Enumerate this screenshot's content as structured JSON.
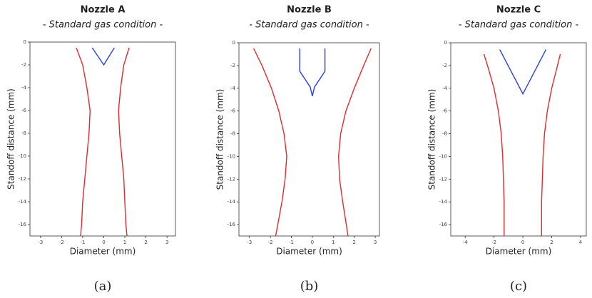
{
  "chart_data": [
    {
      "type": "line",
      "title": "Nozzle A",
      "subtitle": "- Standard gas condition -",
      "xlabel": "Diameter (mm)",
      "ylabel": "Standoff distance (mm)",
      "caption": "(a)",
      "xlim": [
        -3.5,
        3.4
      ],
      "ylim": [
        -17,
        0
      ],
      "xticks": [
        -3,
        -2,
        -1,
        0,
        1,
        2,
        3
      ],
      "yticks": [
        0,
        -2,
        -4,
        -6,
        -8,
        -10,
        -12,
        -14,
        -16
      ],
      "series": [
        {
          "color": "#e8282b",
          "x": [
            -1.3,
            -1.0,
            -0.8,
            -0.65,
            -0.7,
            -0.8,
            -0.9,
            -1.0,
            -1.05,
            -1.1
          ],
          "values": [
            -0.5,
            -2,
            -4,
            -6,
            -8,
            -10,
            -12,
            -14,
            -16,
            -17
          ]
        },
        {
          "color": "#e8282b",
          "x": [
            1.2,
            0.95,
            0.8,
            0.7,
            0.75,
            0.85,
            0.95,
            1.0,
            1.05,
            1.1
          ],
          "values": [
            -0.5,
            -2,
            -4,
            -6,
            -8,
            -10,
            -12,
            -14,
            -16,
            -17
          ]
        },
        {
          "color": "#2a3ee8",
          "x": [
            -0.55,
            0,
            0.5
          ],
          "values": [
            -0.5,
            -2,
            -0.5
          ]
        }
      ]
    },
    {
      "type": "line",
      "title": "Nozzle B",
      "subtitle": "- Standard gas condition -",
      "xlabel": "Diameter (mm)",
      "ylabel": "Standoff distance (mm)",
      "caption": "(b)",
      "xlim": [
        -3.5,
        3.2
      ],
      "ylim": [
        -17,
        0
      ],
      "xticks": [
        -3,
        -2,
        -1,
        0,
        1,
        2,
        3
      ],
      "yticks": [
        0,
        -2,
        -4,
        -6,
        -8,
        -10,
        -12,
        -14,
        -16
      ],
      "series": [
        {
          "color": "#e8282b",
          "x": [
            -2.8,
            -2.4,
            -1.95,
            -1.6,
            -1.35,
            -1.22,
            -1.3,
            -1.45,
            -1.65,
            -1.75
          ],
          "values": [
            -0.5,
            -2,
            -4,
            -6,
            -8,
            -10,
            -12,
            -14,
            -16,
            -17
          ]
        },
        {
          "color": "#e8282b",
          "x": [
            2.8,
            2.45,
            2.0,
            1.6,
            1.35,
            1.25,
            1.3,
            1.45,
            1.62,
            1.7
          ],
          "values": [
            -0.5,
            -2,
            -4,
            -6,
            -8,
            -10,
            -12,
            -14,
            -16,
            -17
          ]
        },
        {
          "color": "#2a3ee8",
          "x": [
            -0.6,
            -0.6,
            -0.1,
            0,
            null,
            0.6,
            0.6,
            0.1,
            0
          ],
          "values": [
            -0.5,
            -2.5,
            -3.9,
            -4.7,
            null,
            -0.5,
            -2.5,
            -3.9,
            -4.7
          ]
        }
      ]
    },
    {
      "type": "line",
      "title": "Nozzle C",
      "subtitle": "- Standard gas condition -",
      "xlabel": "Diameter (mm)",
      "ylabel": "Standoff distance (mm)",
      "caption": "(c)",
      "xlim": [
        -5,
        4.4
      ],
      "ylim": [
        -17,
        0
      ],
      "xticks": [
        -4,
        -2,
        0,
        2,
        4
      ],
      "yticks": [
        0,
        -2,
        -4,
        -6,
        -8,
        -10,
        -12,
        -14,
        -16
      ],
      "series": [
        {
          "color": "#e8282b",
          "x": [
            -2.7,
            -2.45,
            -2.0,
            -1.7,
            -1.5,
            -1.4,
            -1.35,
            -1.3,
            -1.3,
            -1.3
          ],
          "values": [
            -1,
            -2,
            -4,
            -6,
            -8,
            -10,
            -12,
            -14,
            -16,
            -17
          ]
        },
        {
          "color": "#e8282b",
          "x": [
            2.6,
            2.4,
            2.0,
            1.7,
            1.5,
            1.4,
            1.35,
            1.3,
            1.3,
            1.3
          ],
          "values": [
            -1,
            -2,
            -4,
            -6,
            -8,
            -10,
            -12,
            -14,
            -16,
            -17
          ]
        },
        {
          "color": "#2a3ee8",
          "x": [
            -1.6,
            0,
            1.6
          ],
          "values": [
            -0.6,
            -4.5,
            -0.6
          ]
        }
      ]
    }
  ]
}
